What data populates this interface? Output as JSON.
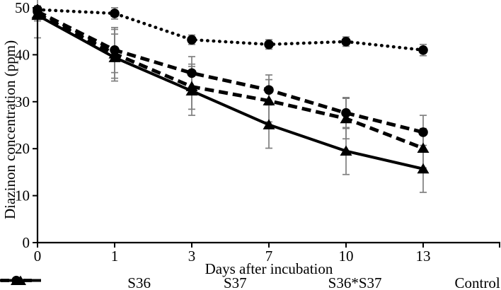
{
  "figure": {
    "background": "#ffffff",
    "axis_color": "#000000",
    "series_color": "#000000",
    "error_bar_color": "#7f7f7f",
    "text_color": "#000000"
  },
  "chart_data": {
    "type": "line",
    "title": "",
    "xlabel": "Days after incubation",
    "ylabel": "Diazinon concentration (ppm)",
    "x_categories": [
      "0",
      "1",
      "3",
      "7",
      "10",
      "13"
    ],
    "ylim": [
      0,
      50
    ],
    "yticks": [
      0,
      10,
      20,
      30,
      40,
      50
    ],
    "grid": false,
    "error_bars": true,
    "legend_position": "bottom",
    "series": [
      {
        "name": "S36",
        "line_style": "dashed",
        "marker": "circle",
        "color": "#000000",
        "values": [
          49.2,
          41.0,
          36.1,
          32.5,
          27.6,
          23.5
        ],
        "errors": [
          1.0,
          4.8,
          3.5,
          3.2,
          3.3,
          3.6
        ]
      },
      {
        "name": "S37",
        "line_style": "dashed",
        "marker": "triangle",
        "color": "#000000",
        "values": [
          48.7,
          40.2,
          33.2,
          30.2,
          26.4,
          20.1
        ],
        "errors": [
          1.5,
          5.2,
          4.8,
          4.5,
          4.3,
          4.2
        ]
      },
      {
        "name": "S36*S37",
        "line_style": "solid",
        "marker": "triangle",
        "color": "#000000",
        "values": [
          48.4,
          39.4,
          32.3,
          25.1,
          19.5,
          15.7
        ],
        "errors": [
          4.8,
          5.0,
          5.2,
          5.0,
          5.0,
          5.0
        ]
      },
      {
        "name": "Control",
        "line_style": "dotted",
        "marker": "circle",
        "color": "#000000",
        "values": [
          49.6,
          48.8,
          43.2,
          42.2,
          42.8,
          41.0
        ],
        "errors": [
          0.8,
          1.2,
          1.0,
          1.0,
          1.0,
          1.2
        ]
      }
    ]
  }
}
